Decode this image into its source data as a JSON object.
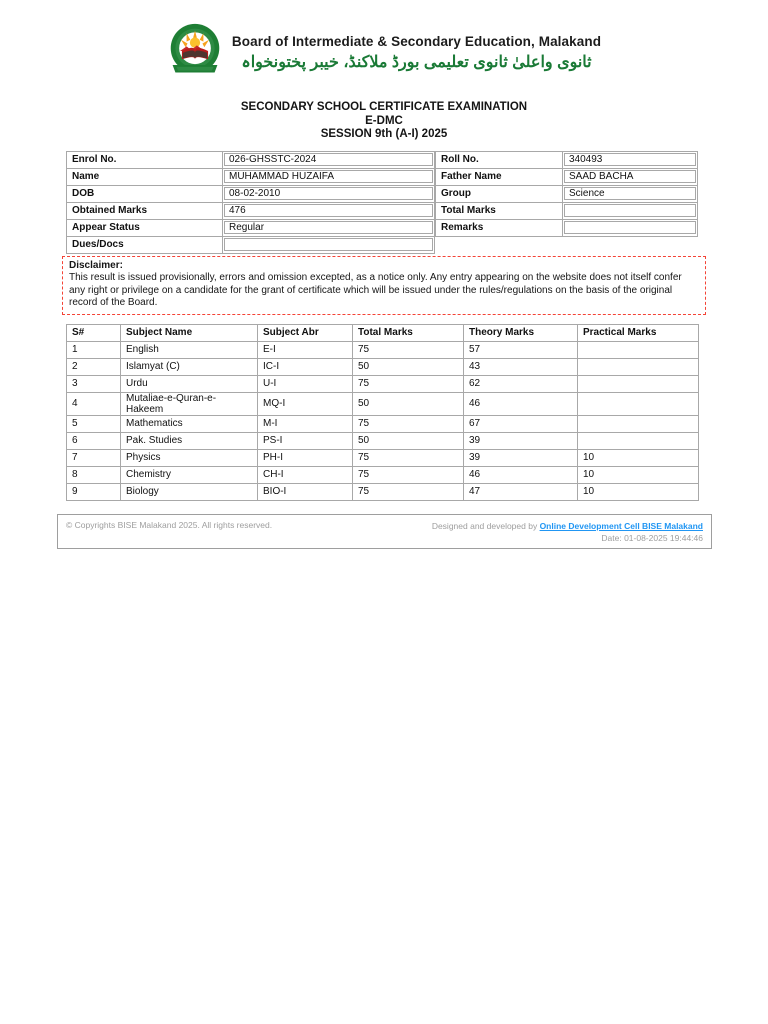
{
  "header": {
    "board_name": "Board of Intermediate & Secondary Education, Malakand",
    "board_name_urdu": "ثانوی واعلیٰ ثانوی تعلیمی بورڈ ملاکنڈ، خیبر پختونخواہ"
  },
  "title": {
    "line1": "SECONDARY SCHOOL CERTIFICATE EXAMINATION",
    "line2": "E-DMC",
    "line3": "SESSION 9th (A-I) 2025"
  },
  "student_info": {
    "left_rows": [
      {
        "label": "Enrol No.",
        "value": "026-GHSSTC-2024"
      },
      {
        "label": "Name",
        "value": "MUHAMMAD HUZAIFA"
      },
      {
        "label": "DOB",
        "value": "08-02-2010"
      },
      {
        "label": "Obtained Marks",
        "value": "476"
      },
      {
        "label": "Appear Status",
        "value": "Regular"
      },
      {
        "label": "Dues/Docs",
        "value": ""
      }
    ],
    "right_rows": [
      {
        "label": "Roll No.",
        "value": "340493"
      },
      {
        "label": "Father Name",
        "value": "SAAD BACHA"
      },
      {
        "label": "Group",
        "value": "Science"
      },
      {
        "label": "Total Marks",
        "value": ""
      },
      {
        "label": "Remarks",
        "value": ""
      }
    ]
  },
  "disclaimer": {
    "heading": "Disclaimer:",
    "body": "This result is issued provisionally, errors and omission excepted, as a notice only. Any entry appearing on the website does not itself confer any right or privilege on a candidate for the grant of certificate which will be issued under the rules/regulations on the basis of the original record of the Board."
  },
  "marks_table": {
    "headers": [
      "S#",
      "Subject Name",
      "Subject Abr",
      "Total Marks",
      "Theory Marks",
      "Practical Marks"
    ],
    "rows": [
      [
        "1",
        "English",
        "E-I",
        "75",
        "57",
        ""
      ],
      [
        "2",
        "Islamyat (C)",
        "IC-I",
        "50",
        "43",
        ""
      ],
      [
        "3",
        "Urdu",
        "U-I",
        "75",
        "62",
        ""
      ],
      [
        "4",
        "Mutaliae-e-Quran-e-Hakeem",
        "MQ-I",
        "50",
        "46",
        ""
      ],
      [
        "5",
        "Mathematics",
        "M-I",
        "75",
        "67",
        ""
      ],
      [
        "6",
        "Pak. Studies",
        "PS-I",
        "50",
        "39",
        ""
      ],
      [
        "7",
        "Physics",
        "PH-I",
        "75",
        "39",
        "10"
      ],
      [
        "8",
        "Chemistry",
        "CH-I",
        "75",
        "46",
        "10"
      ],
      [
        "9",
        "Biology",
        "BIO-I",
        "75",
        "47",
        "10"
      ]
    ]
  },
  "footer": {
    "copyright": "© Copyrights BISE Malakand 2025. All rights reserved.",
    "designed_by_prefix": "Designed and developed by ",
    "designed_by_link": "Online Development Cell BISE Malakand",
    "date_label": "Date: 01-08-2025 19:44:46"
  },
  "colors": {
    "brand_green": "#1e7e34",
    "urdu_green": "#1a7a36",
    "disclaimer_red": "#f44336",
    "border_gray": "#a8a8a8",
    "footer_gray": "#9e9e9e",
    "link_blue": "#2196f3",
    "logo_sun_orange": "#f6a21d",
    "logo_book_red": "#b71c1c"
  }
}
